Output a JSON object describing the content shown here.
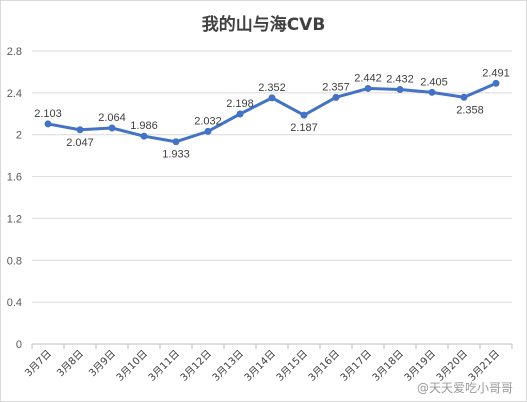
{
  "chart_data": {
    "type": "line",
    "title": "我的山与海CVB",
    "categories": [
      "3月7日",
      "3月8日",
      "3月9日",
      "3月10日",
      "3月11日",
      "3月12日",
      "3月13日",
      "3月14日",
      "3月15日",
      "3月16日",
      "3月17日",
      "3月18日",
      "3月19日",
      "3月20日",
      "3月21日"
    ],
    "series": [
      {
        "values": [
          2.103,
          2.047,
          2.064,
          1.986,
          1.933,
          2.032,
          2.198,
          2.352,
          2.187,
          2.357,
          2.442,
          2.432,
          2.405,
          2.358,
          2.491
        ]
      }
    ],
    "data_labels": [
      "2.103",
      "2.047",
      "2.064",
      "1.986",
      "1.933",
      "2.032",
      "2.198",
      "2.352",
      "2.187",
      "2.357",
      "2.442",
      "2.432",
      "2.405",
      "2.358",
      "2.491"
    ],
    "yticks": [
      "0",
      "0.4",
      "0.8",
      "1.2",
      "1.6",
      "2",
      "2.4",
      "2.8"
    ],
    "ylim": [
      0,
      2.8
    ],
    "grid": true,
    "legend": "none",
    "line_color": "#4472c4"
  },
  "watermark": "@天天爱吃小哥哥"
}
